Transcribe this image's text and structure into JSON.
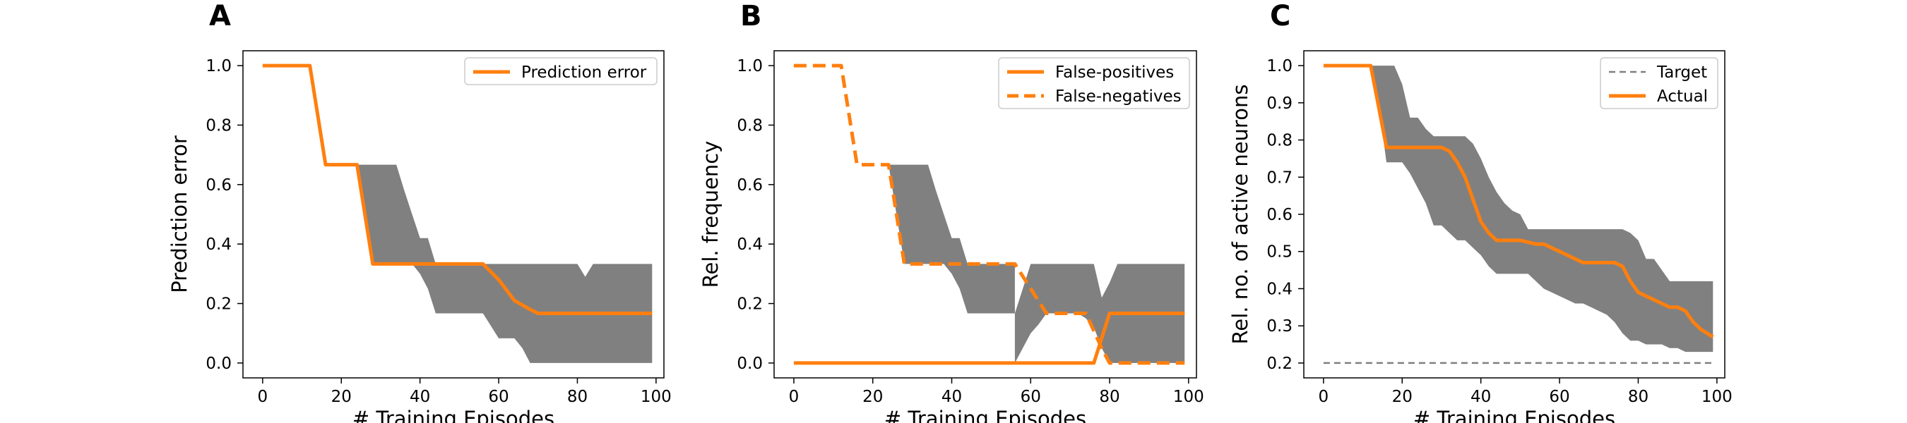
{
  "chart_data": [
    {
      "panel": "A",
      "type": "line",
      "xlabel": "# Training Episodes",
      "ylabel": "Prediction error",
      "xlim": [
        -5,
        102
      ],
      "ylim": [
        -0.05,
        1.05
      ],
      "xticks": [
        0,
        20,
        40,
        60,
        80,
        100
      ],
      "yticks": [
        0.0,
        0.2,
        0.4,
        0.6,
        0.8,
        1.0
      ],
      "yticks_fmt": 1,
      "legend": "top-right",
      "colors": {
        "line": "#ff7f0e",
        "band": "#808080"
      },
      "band": {
        "x": [
          24,
          28,
          32,
          34,
          36,
          38,
          40,
          42,
          44,
          56,
          60,
          64,
          66,
          68,
          70,
          80,
          82,
          84,
          86,
          99
        ],
        "lower": [
          0.667,
          0.333,
          0.333,
          0.333,
          0.333,
          0.333,
          0.3,
          0.25,
          0.167,
          0.167,
          0.083,
          0.083,
          0.05,
          0.0,
          0.0,
          0.0,
          0.0,
          0.0,
          0.0,
          0.0
        ],
        "upper": [
          0.667,
          0.667,
          0.667,
          0.667,
          0.58,
          0.5,
          0.42,
          0.42,
          0.333,
          0.333,
          0.333,
          0.333,
          0.333,
          0.333,
          0.333,
          0.333,
          0.29,
          0.333,
          0.333,
          0.333
        ]
      },
      "series": [
        {
          "name": "Prediction error",
          "style": "solid",
          "x": [
            0,
            12,
            16,
            24,
            28,
            56,
            60,
            64,
            68,
            70,
            99
          ],
          "y": [
            1.0,
            1.0,
            0.667,
            0.667,
            0.333,
            0.333,
            0.28,
            0.21,
            0.18,
            0.167,
            0.167
          ]
        }
      ]
    },
    {
      "panel": "B",
      "type": "line",
      "xlabel": "# Training Episodes",
      "ylabel": "Rel. frequency",
      "xlim": [
        -5,
        102
      ],
      "ylim": [
        -0.05,
        1.05
      ],
      "xticks": [
        0,
        20,
        40,
        60,
        80,
        100
      ],
      "yticks": [
        0.0,
        0.2,
        0.4,
        0.6,
        0.8,
        1.0
      ],
      "yticks_fmt": 1,
      "legend": "top-right",
      "colors": {
        "line": "#ff7f0e",
        "band": "#808080"
      },
      "bands": [
        {
          "x": [
            24,
            28,
            32,
            34,
            36,
            38,
            40,
            42,
            44,
            56
          ],
          "lower": [
            0.667,
            0.333,
            0.333,
            0.333,
            0.333,
            0.333,
            0.3,
            0.25,
            0.167,
            0.167
          ],
          "upper": [
            0.667,
            0.667,
            0.667,
            0.667,
            0.58,
            0.5,
            0.42,
            0.42,
            0.333,
            0.333
          ]
        },
        {
          "x": [
            56,
            58,
            60,
            62,
            64,
            66,
            68,
            70,
            72,
            74,
            76,
            78,
            80,
            82,
            99
          ],
          "lower": [
            0.0,
            0.05,
            0.1,
            0.13,
            0.167,
            0.167,
            0.167,
            0.167,
            0.167,
            0.15,
            0.12,
            0.05,
            0.0,
            0.0,
            0.0
          ],
          "upper": [
            0.167,
            0.25,
            0.333,
            0.333,
            0.333,
            0.333,
            0.333,
            0.333,
            0.333,
            0.333,
            0.333,
            0.22,
            0.27,
            0.333,
            0.333
          ]
        }
      ],
      "series": [
        {
          "name": "False-positives",
          "style": "solid",
          "x": [
            0,
            76,
            80,
            99
          ],
          "y": [
            0.0,
            0.0,
            0.167,
            0.167
          ]
        },
        {
          "name": "False-negatives",
          "style": "dashed",
          "x": [
            0,
            12,
            16,
            24,
            28,
            56,
            60,
            64,
            74,
            78,
            80,
            99
          ],
          "y": [
            1.0,
            1.0,
            0.667,
            0.667,
            0.333,
            0.333,
            0.25,
            0.167,
            0.167,
            0.05,
            0.0,
            0.0
          ]
        }
      ]
    },
    {
      "panel": "C",
      "type": "line",
      "xlabel": "# Training Episodes",
      "ylabel": "Rel. no. of active neurons",
      "xlim": [
        -5,
        102
      ],
      "ylim": [
        0.16,
        1.04
      ],
      "xticks": [
        0,
        20,
        40,
        60,
        80,
        100
      ],
      "yticks": [
        0.2,
        0.3,
        0.4,
        0.5,
        0.6,
        0.7,
        0.8,
        0.9,
        1.0
      ],
      "yticks_fmt": 1,
      "legend": "top-right",
      "colors": {
        "line": "#ff7f0e",
        "target": "#808080",
        "band": "#808080"
      },
      "band": {
        "x": [
          12,
          14,
          16,
          18,
          20,
          22,
          24,
          26,
          28,
          30,
          32,
          34,
          36,
          38,
          40,
          42,
          44,
          46,
          48,
          50,
          52,
          54,
          56,
          58,
          60,
          62,
          64,
          66,
          68,
          70,
          72,
          74,
          76,
          78,
          80,
          82,
          84,
          86,
          88,
          90,
          92,
          94,
          96,
          99
        ],
        "lower": [
          1.0,
          0.9,
          0.74,
          0.74,
          0.74,
          0.71,
          0.67,
          0.63,
          0.57,
          0.57,
          0.55,
          0.53,
          0.53,
          0.51,
          0.49,
          0.46,
          0.44,
          0.44,
          0.44,
          0.44,
          0.44,
          0.42,
          0.4,
          0.39,
          0.38,
          0.37,
          0.36,
          0.36,
          0.35,
          0.34,
          0.33,
          0.31,
          0.28,
          0.26,
          0.26,
          0.25,
          0.25,
          0.25,
          0.24,
          0.24,
          0.23,
          0.23,
          0.23,
          0.23
        ],
        "upper": [
          1.0,
          1.0,
          1.0,
          1.0,
          0.95,
          0.86,
          0.86,
          0.83,
          0.81,
          0.81,
          0.81,
          0.81,
          0.81,
          0.79,
          0.75,
          0.7,
          0.66,
          0.63,
          0.61,
          0.6,
          0.56,
          0.56,
          0.56,
          0.56,
          0.56,
          0.56,
          0.56,
          0.56,
          0.56,
          0.56,
          0.56,
          0.56,
          0.56,
          0.55,
          0.53,
          0.48,
          0.48,
          0.45,
          0.42,
          0.42,
          0.42,
          0.42,
          0.42,
          0.42
        ]
      },
      "series": [
        {
          "name": "Target",
          "style": "dashed",
          "x": [
            0,
            99
          ],
          "y": [
            0.2,
            0.2
          ]
        },
        {
          "name": "Actual",
          "style": "solid",
          "x": [
            0,
            12,
            16,
            30,
            32,
            34,
            36,
            38,
            40,
            42,
            44,
            48,
            50,
            54,
            56,
            58,
            60,
            62,
            64,
            66,
            74,
            76,
            78,
            80,
            82,
            84,
            86,
            88,
            90,
            92,
            94,
            96,
            99
          ],
          "y": [
            1.0,
            1.0,
            0.78,
            0.78,
            0.77,
            0.74,
            0.7,
            0.64,
            0.58,
            0.55,
            0.53,
            0.53,
            0.53,
            0.52,
            0.52,
            0.51,
            0.5,
            0.49,
            0.48,
            0.47,
            0.47,
            0.46,
            0.42,
            0.39,
            0.38,
            0.37,
            0.36,
            0.35,
            0.35,
            0.34,
            0.31,
            0.29,
            0.27
          ]
        }
      ]
    }
  ]
}
